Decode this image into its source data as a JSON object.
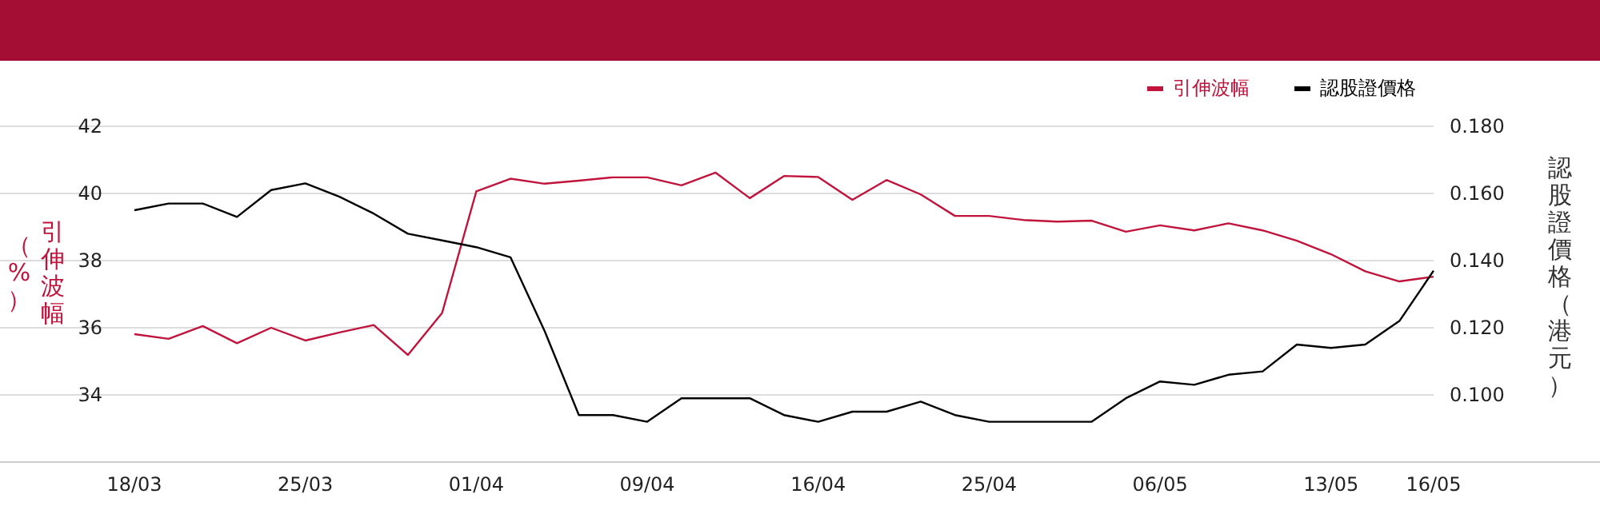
{
  "chart_data": {
    "type": "line",
    "categories": [
      "18/03",
      null,
      null,
      null,
      null,
      "25/03",
      null,
      null,
      null,
      null,
      "01/04",
      null,
      null,
      null,
      null,
      "09/04",
      null,
      null,
      null,
      null,
      "16/04",
      null,
      null,
      null,
      null,
      "25/04",
      null,
      null,
      null,
      null,
      "06/05",
      null,
      null,
      null,
      null,
      "13/05",
      null,
      null,
      "16/05"
    ],
    "series": [
      {
        "name": "引伸波幅",
        "color": "#c0143c",
        "values": [
          35.81,
          35.67,
          36.05,
          35.54,
          36.0,
          35.62,
          35.86,
          36.08,
          35.19,
          36.44,
          40.06,
          40.44,
          40.29,
          40.38,
          40.48,
          40.48,
          40.24,
          40.62,
          39.86,
          40.52,
          40.49,
          39.81,
          40.4,
          39.97,
          39.33,
          39.33,
          39.21,
          39.16,
          39.19,
          38.86,
          39.05,
          38.9,
          39.11,
          38.9,
          38.59,
          38.19,
          37.68,
          37.38,
          37.52
        ]
      },
      {
        "name": "認股證價格",
        "color": "#000000",
        "axis": "y2",
        "values": [
          0.155,
          0.157,
          0.157,
          0.153,
          0.161,
          0.163,
          0.159,
          0.154,
          0.148,
          0.146,
          0.144,
          0.141,
          0.119,
          0.094,
          0.094,
          0.092,
          0.099,
          0.099,
          0.099,
          0.094,
          0.092,
          0.095,
          0.095,
          0.098,
          0.094,
          0.092,
          0.092,
          0.092,
          0.092,
          0.099,
          0.104,
          0.103,
          0.106,
          0.107,
          0.115,
          0.114,
          0.115,
          0.122,
          0.137
        ]
      }
    ],
    "ylabel": "引伸波幅（%）",
    "y2label": "認股證價格（港元）",
    "ylim": [
      32,
      42
    ],
    "yticks": [
      34,
      36,
      38,
      40,
      42
    ],
    "y2lim": [
      0.08,
      0.18
    ],
    "y2ticks": [
      {
        "value": 0.1,
        "label": "0.100"
      },
      {
        "value": 0.12,
        "label": "0.120"
      },
      {
        "value": 0.14,
        "label": "0.140"
      },
      {
        "value": 0.16,
        "label": "0.160"
      },
      {
        "value": 0.18,
        "label": "0.180"
      }
    ],
    "grid": "y",
    "legend": "top right",
    "line_style": "solid",
    "marker": "none"
  }
}
